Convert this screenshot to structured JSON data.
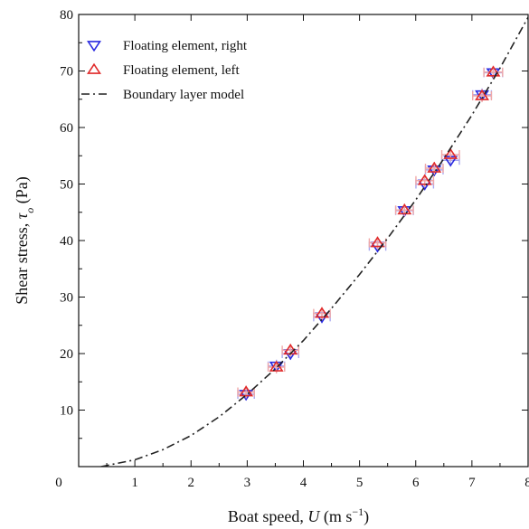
{
  "chart_data": {
    "type": "scatter",
    "title": "",
    "xlabel": "Boat speed, U (m s⁻¹)",
    "xlabel_parts": {
      "pre": "Boat speed, ",
      "var": "U",
      "post": " (m s",
      "sup": "−1",
      "close": ")"
    },
    "ylabel": "Shear stress, τo (Pa)",
    "ylabel_parts": {
      "pre": "Shear stress, ",
      "var": "τ",
      "sub": "o",
      "post": " (Pa)"
    },
    "xlim": [
      0,
      8
    ],
    "ylim": [
      0,
      80
    ],
    "x_ticks": [
      0,
      1,
      2,
      3,
      4,
      5,
      6,
      7,
      8
    ],
    "y_ticks": [
      10,
      20,
      30,
      40,
      50,
      60,
      70,
      80
    ],
    "x_tick_labels": [
      "0",
      "1",
      "2",
      "3",
      "4",
      "5",
      "6",
      "7",
      "8"
    ],
    "y_tick_labels": [
      "10",
      "20",
      "30",
      "40",
      "50",
      "60",
      "70",
      "80"
    ],
    "grid": false,
    "legend_position": "top-left",
    "series": [
      {
        "name": "Floating element, right",
        "marker": "triangle-down",
        "color": "#2a2ae0",
        "errorbar_color": "#a8a8f0",
        "x": [
          2.98,
          3.52,
          3.77,
          4.33,
          5.32,
          5.8,
          6.16,
          6.33,
          6.62,
          7.18,
          7.38
        ],
        "y": [
          12.8,
          17.8,
          20.0,
          26.5,
          39.0,
          45.3,
          50.0,
          52.5,
          54.2,
          65.8,
          69.7
        ],
        "xerr": [
          0.05,
          0.05,
          0.05,
          0.05,
          0.05,
          0.06,
          0.06,
          0.06,
          0.06,
          0.07,
          0.07
        ]
      },
      {
        "name": "Floating element, left",
        "marker": "triangle-up",
        "color": "#e02a2a",
        "errorbar_color": "#f0a8a8",
        "x": [
          2.98,
          3.52,
          3.77,
          4.33,
          5.32,
          5.8,
          6.16,
          6.33,
          6.62,
          7.18,
          7.38
        ],
        "y": [
          13.2,
          17.6,
          20.6,
          27.1,
          39.6,
          45.4,
          50.6,
          52.8,
          55.2,
          65.6,
          69.8
        ],
        "xerr": [
          0.05,
          0.05,
          0.05,
          0.05,
          0.05,
          0.06,
          0.06,
          0.06,
          0.06,
          0.07,
          0.07
        ]
      },
      {
        "name": "Boundary layer model",
        "style": "dash-dot",
        "color": "#222222",
        "x": [
          0.4,
          1,
          1.5,
          2,
          2.5,
          3,
          3.5,
          4,
          4.5,
          5,
          5.5,
          6,
          6.5,
          7,
          7.5,
          8.0
        ],
        "y": [
          0,
          1.2,
          3.0,
          5.5,
          8.8,
          12.8,
          17.3,
          22.3,
          28.0,
          34.0,
          40.4,
          47.2,
          54.5,
          62.2,
          70.5,
          79.5
        ]
      }
    ]
  }
}
